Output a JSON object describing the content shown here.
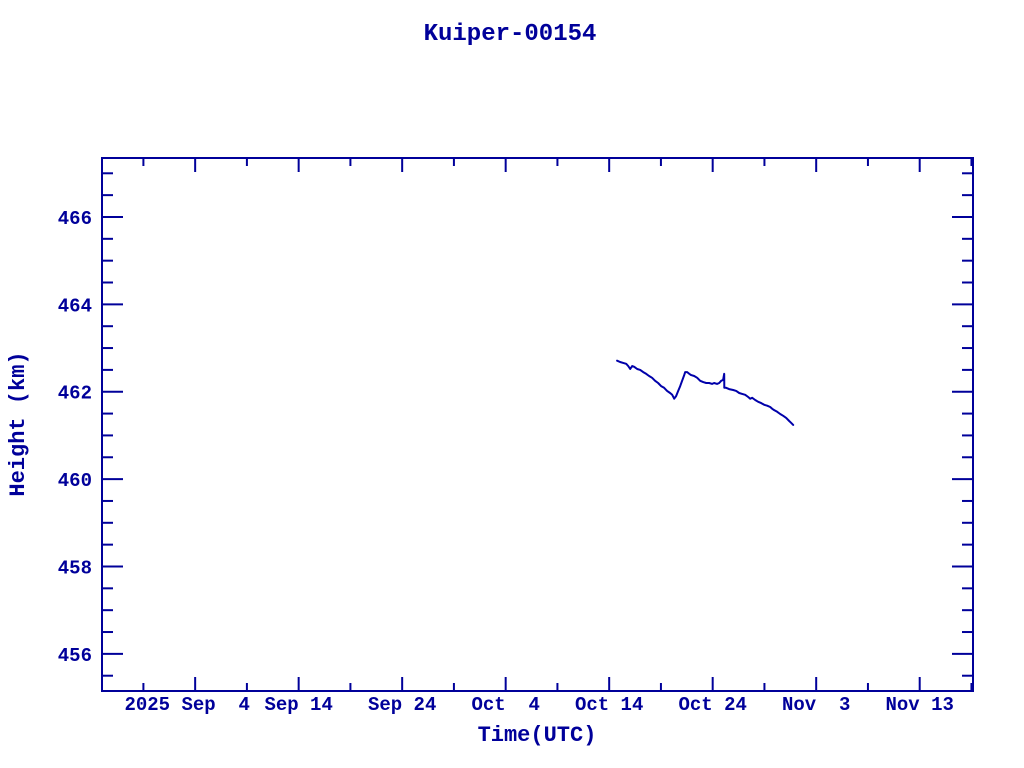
{
  "page": {
    "title": "Kuiper-00154"
  },
  "colors": {
    "ink": "#00009a",
    "line": "#0000aa",
    "background": "#ffffff"
  },
  "chart_data": {
    "type": "line",
    "title": "Kuiper-00154",
    "xlabel": "Time(UTC)",
    "ylabel": "Height (km)",
    "x_unit": "days since 2025-09-04 00:00 UTC",
    "xlim": [
      -9.0,
      75.15
    ],
    "ylim": [
      455.15,
      467.35
    ],
    "grid": false,
    "legend": "none",
    "x_major_ticks": [
      {
        "day": 0,
        "label": "2025 Sep  4",
        "dx": -8
      },
      {
        "day": 10,
        "label": "Sep 14"
      },
      {
        "day": 20,
        "label": "Sep 24"
      },
      {
        "day": 30,
        "label": "Oct  4"
      },
      {
        "day": 40,
        "label": "Oct 14"
      },
      {
        "day": 50,
        "label": "Oct 24"
      },
      {
        "day": 60,
        "label": "Nov  3"
      },
      {
        "day": 70,
        "label": "Nov 13"
      }
    ],
    "x_minor_ticks": [
      -5,
      5,
      15,
      25,
      35,
      45,
      55,
      65,
      75
    ],
    "y_major_ticks": [
      456,
      458,
      460,
      462,
      464,
      466
    ],
    "y_minor_ticks": [
      455.5,
      456.5,
      457,
      457.5,
      458.5,
      459,
      459.5,
      460.5,
      461,
      461.5,
      462.5,
      463,
      463.5,
      464.5,
      465,
      465.5,
      466.5,
      467
    ],
    "series": [
      {
        "name": "Kuiper-00154 height",
        "points": [
          [
            40.77,
            462.71
          ],
          [
            41.06,
            462.68
          ],
          [
            41.35,
            462.66
          ],
          [
            41.64,
            462.64
          ],
          [
            41.84,
            462.59
          ],
          [
            42.03,
            462.52
          ],
          [
            42.22,
            462.59
          ],
          [
            42.42,
            462.57
          ],
          [
            42.71,
            462.52
          ],
          [
            43.0,
            462.5
          ],
          [
            43.29,
            462.45
          ],
          [
            43.57,
            462.41
          ],
          [
            43.86,
            462.36
          ],
          [
            44.15,
            462.32
          ],
          [
            44.44,
            462.25
          ],
          [
            44.73,
            462.2
          ],
          [
            45.02,
            462.13
          ],
          [
            45.31,
            462.09
          ],
          [
            45.6,
            462.02
          ],
          [
            45.89,
            461.97
          ],
          [
            46.09,
            461.93
          ],
          [
            46.28,
            461.84
          ],
          [
            46.47,
            461.9
          ],
          [
            46.67,
            462.02
          ],
          [
            46.86,
            462.13
          ],
          [
            47.05,
            462.25
          ],
          [
            47.25,
            462.38
          ],
          [
            47.34,
            462.45
          ],
          [
            47.54,
            462.45
          ],
          [
            47.73,
            462.41
          ],
          [
            47.92,
            462.38
          ],
          [
            48.21,
            462.36
          ],
          [
            48.5,
            462.32
          ],
          [
            48.79,
            462.25
          ],
          [
            49.08,
            462.22
          ],
          [
            49.37,
            462.2
          ],
          [
            49.66,
            462.2
          ],
          [
            49.95,
            462.18
          ],
          [
            50.14,
            462.2
          ],
          [
            50.43,
            462.18
          ],
          [
            50.63,
            462.2
          ],
          [
            50.82,
            462.25
          ],
          [
            51.01,
            462.27
          ],
          [
            51.11,
            462.41
          ],
          [
            51.12,
            462.09
          ],
          [
            51.3,
            462.09
          ],
          [
            51.59,
            462.06
          ],
          [
            51.98,
            462.04
          ],
          [
            52.27,
            462.02
          ],
          [
            52.56,
            461.97
          ],
          [
            52.85,
            461.95
          ],
          [
            53.14,
            461.93
          ],
          [
            53.43,
            461.88
          ],
          [
            53.62,
            461.84
          ],
          [
            53.82,
            461.86
          ],
          [
            54.11,
            461.81
          ],
          [
            54.4,
            461.77
          ],
          [
            54.69,
            461.74
          ],
          [
            54.98,
            461.7
          ],
          [
            55.27,
            461.68
          ],
          [
            55.56,
            461.65
          ],
          [
            55.75,
            461.61
          ],
          [
            55.94,
            461.58
          ],
          [
            56.23,
            461.54
          ],
          [
            56.52,
            461.49
          ],
          [
            56.81,
            461.45
          ],
          [
            57.1,
            461.4
          ],
          [
            57.39,
            461.33
          ],
          [
            57.58,
            461.29
          ],
          [
            57.78,
            461.24
          ]
        ]
      }
    ]
  }
}
